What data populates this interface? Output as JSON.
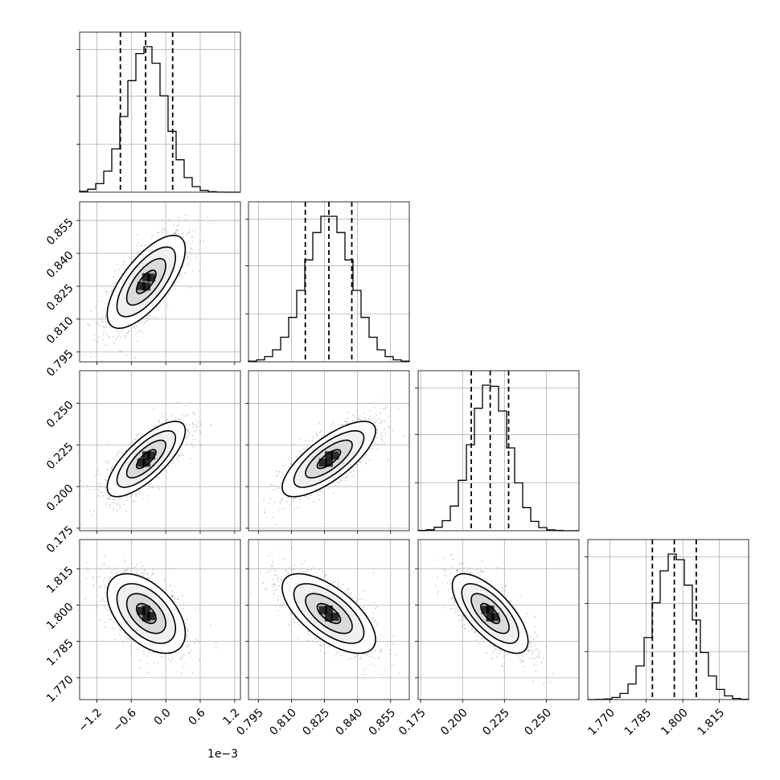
{
  "chart_data": {
    "type": "corner",
    "n_params": 4,
    "colors": {
      "line": "#000000",
      "grid": "#b0b0b0",
      "scatter": "#9a9a9a",
      "density_fill": "#d0d0d0",
      "density_core": "#000000"
    },
    "params": [
      {
        "mean": -0.00034,
        "sd": 0.00034,
        "quantiles": [
          -0.00079,
          -0.00035,
          0.00012
        ],
        "range": [
          -0.0015,
          0.0013
        ],
        "ticks": [
          -0.0012,
          -0.0006,
          0.0,
          0.0006,
          0.0012
        ],
        "tick_labels": [
          "−1.2",
          "−0.6",
          "0.0",
          "0.6",
          "1.2"
        ],
        "offset_label": "1e−3"
      },
      {
        "mean": 0.827,
        "sd": 0.0106,
        "quantiles": [
          0.8163,
          0.827,
          0.8374
        ],
        "range": [
          0.7905,
          0.8635
        ],
        "ticks": [
          0.795,
          0.81,
          0.825,
          0.84,
          0.855
        ],
        "tick_labels": [
          "0.795",
          "0.810",
          "0.825",
          "0.840",
          "0.855"
        ]
      },
      {
        "mean": 0.2165,
        "sd": 0.0113,
        "quantiles": [
          0.2052,
          0.2165,
          0.2275
        ],
        "range": [
          0.1735,
          0.2695
        ],
        "ticks": [
          0.175,
          0.2,
          0.225,
          0.25
        ],
        "tick_labels": [
          "0.175",
          "0.200",
          "0.225",
          "0.250"
        ]
      },
      {
        "mean": 1.7965,
        "sd": 0.0082,
        "quantiles": [
          1.7875,
          1.7965,
          1.8055
        ],
        "range": [
          1.761,
          1.827
        ],
        "ticks": [
          1.77,
          1.785,
          1.8,
          1.815
        ],
        "tick_labels": [
          "1.770",
          "1.785",
          "1.800",
          "1.815"
        ]
      }
    ],
    "correlations": [
      [
        1.0,
        0.7,
        0.75,
        -0.5
      ],
      [
        0.7,
        1.0,
        0.75,
        -0.65
      ],
      [
        0.75,
        0.75,
        1.0,
        -0.7
      ],
      [
        -0.5,
        -0.65,
        -0.7,
        1.0
      ]
    ],
    "contour_levels_sigma": [
      0.5,
      1.0,
      1.5,
      2.0
    ],
    "grid": true
  }
}
